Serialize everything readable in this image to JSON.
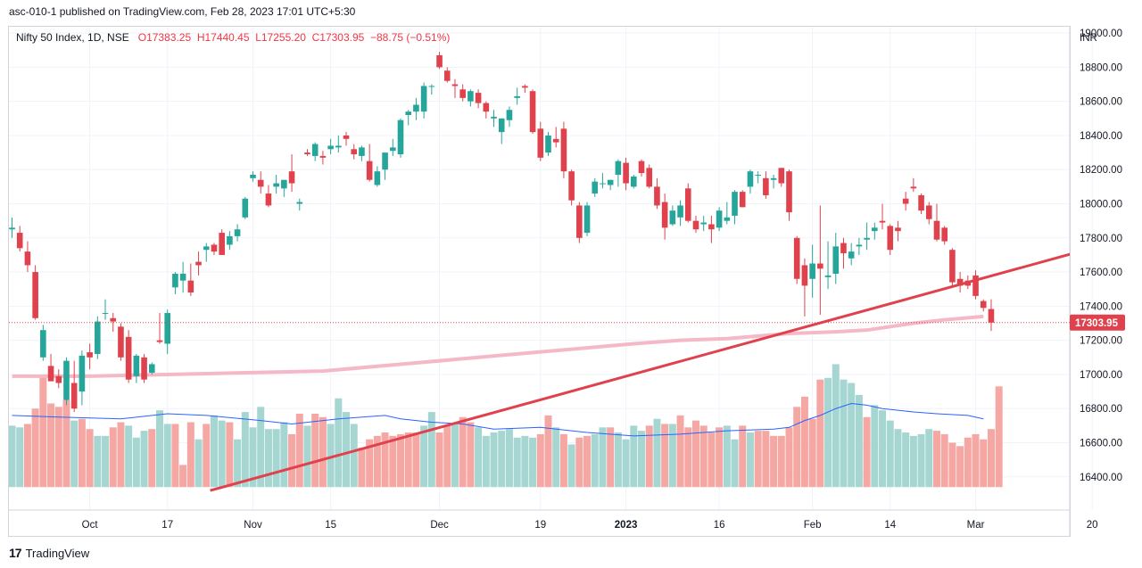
{
  "header": {
    "text": "asc-010-1 published on TradingView.com, Feb 28, 2023 17:01 UTC+5:30"
  },
  "legend": {
    "symbol": "Nifty 50 Index, 1D, NSE",
    "open": "O17383.25",
    "high": "H17440.45",
    "low": "L17255.20",
    "close": "C17303.95",
    "change": "−88.75 (−0.51%)"
  },
  "footer": {
    "logo_mark": "17",
    "brand": "TradingView"
  },
  "colors": {
    "up": "#26a69a",
    "down": "#e0424d",
    "trendline": "#e0424d",
    "ma": "#f5b8c6",
    "vol_ma": "#2962ff"
  },
  "chart_data": {
    "type": "candlestick",
    "title": "Nifty 50 Index, 1D, NSE",
    "currency_label": "INR",
    "last_price_label": "17303.95",
    "ylim": [
      16320,
      19080
    ],
    "y_ticks": [
      "19000.00",
      "18800.00",
      "18600.00",
      "18400.00",
      "18200.00",
      "18000.00",
      "17800.00",
      "17600.00",
      "17400.00",
      "17200.00",
      "17000.00",
      "16800.00",
      "16600.00",
      "16400.00"
    ],
    "x_tick_labels": [
      {
        "label": "Oct",
        "index": 10,
        "bold": false
      },
      {
        "label": "17",
        "index": 20,
        "bold": false
      },
      {
        "label": "Nov",
        "index": 31,
        "bold": false
      },
      {
        "label": "15",
        "index": 41,
        "bold": false
      },
      {
        "label": "Dec",
        "index": 55,
        "bold": false
      },
      {
        "label": "19",
        "index": 68,
        "bold": false
      },
      {
        "label": "2023",
        "index": 79,
        "bold": true
      },
      {
        "label": "16",
        "index": 91,
        "bold": false
      },
      {
        "label": "Feb",
        "index": 103,
        "bold": false
      },
      {
        "label": "14",
        "index": 113,
        "bold": false
      },
      {
        "label": "Mar",
        "index": 124,
        "bold": false
      },
      {
        "label": "20",
        "index": 139,
        "bold": false
      }
    ],
    "candles": [
      [
        17850,
        17920,
        17800,
        17860
      ],
      [
        17830,
        17870,
        17720,
        17740
      ],
      [
        17720,
        17780,
        17600,
        17640
      ],
      [
        17600,
        17640,
        17320,
        17330
      ],
      [
        17100,
        17290,
        17080,
        17260
      ],
      [
        17050,
        17120,
        16960,
        16960
      ],
      [
        16990,
        17030,
        16920,
        16950
      ],
      [
        16850,
        17100,
        16820,
        17080
      ],
      [
        16950,
        17080,
        16780,
        16800
      ],
      [
        16900,
        17140,
        16820,
        17110
      ],
      [
        17130,
        17180,
        17030,
        17100
      ],
      [
        17120,
        17340,
        17090,
        17310
      ],
      [
        17360,
        17440,
        17320,
        17360
      ],
      [
        17330,
        17360,
        17250,
        17310
      ],
      [
        17280,
        17300,
        17080,
        17100
      ],
      [
        17220,
        17260,
        16950,
        16970
      ],
      [
        16990,
        17120,
        16950,
        17110
      ],
      [
        17100,
        17120,
        16950,
        16970
      ],
      [
        17010,
        17070,
        17000,
        17060
      ],
      [
        17200,
        17360,
        17180,
        17190
      ],
      [
        17180,
        17380,
        17120,
        17360
      ],
      [
        17510,
        17600,
        17470,
        17590
      ],
      [
        17550,
        17660,
        17480,
        17590
      ],
      [
        17550,
        17650,
        17460,
        17480
      ],
      [
        17660,
        17720,
        17580,
        17640
      ],
      [
        17730,
        17770,
        17660,
        17750
      ],
      [
        17760,
        17770,
        17700,
        17720
      ],
      [
        17830,
        17850,
        17700,
        17700
      ],
      [
        17760,
        17840,
        17730,
        17810
      ],
      [
        17810,
        17880,
        17780,
        17850
      ],
      [
        17920,
        18040,
        17910,
        18030
      ],
      [
        18150,
        18190,
        18130,
        18170
      ],
      [
        18140,
        18190,
        18060,
        18100
      ],
      [
        18060,
        18110,
        17980,
        17990
      ],
      [
        18100,
        18170,
        18060,
        18120
      ],
      [
        18090,
        18140,
        18040,
        18140
      ],
      [
        18190,
        18290,
        18070,
        18120
      ],
      [
        18000,
        18030,
        17960,
        18010
      ],
      [
        18300,
        18320,
        18280,
        18290
      ],
      [
        18280,
        18360,
        18250,
        18350
      ],
      [
        18280,
        18310,
        18230,
        18270
      ],
      [
        18320,
        18380,
        18290,
        18340
      ],
      [
        18330,
        18400,
        18300,
        18340
      ],
      [
        18400,
        18420,
        18340,
        18380
      ],
      [
        18320,
        18350,
        18260,
        18290
      ],
      [
        18280,
        18340,
        18250,
        18330
      ],
      [
        18250,
        18350,
        18130,
        18140
      ],
      [
        18110,
        18220,
        18100,
        18190
      ],
      [
        18200,
        18300,
        18140,
        18300
      ],
      [
        18310,
        18380,
        18280,
        18330
      ],
      [
        18290,
        18500,
        18270,
        18490
      ],
      [
        18520,
        18550,
        18460,
        18540
      ],
      [
        18540,
        18620,
        18490,
        18580
      ],
      [
        18540,
        18710,
        18500,
        18690
      ],
      [
        18690,
        18700,
        18640,
        18690
      ],
      [
        18870,
        18890,
        18790,
        18800
      ],
      [
        18780,
        18800,
        18710,
        18720
      ],
      [
        18700,
        18730,
        18620,
        18690
      ],
      [
        18670,
        18700,
        18600,
        18620
      ],
      [
        18600,
        18670,
        18570,
        18660
      ],
      [
        18650,
        18670,
        18560,
        18590
      ],
      [
        18590,
        18600,
        18500,
        18540
      ],
      [
        18500,
        18550,
        18450,
        18510
      ],
      [
        18420,
        18500,
        18350,
        18500
      ],
      [
        18490,
        18570,
        18450,
        18550
      ],
      [
        18620,
        18680,
        18580,
        18630
      ],
      [
        18690,
        18700,
        18650,
        18680
      ],
      [
        18660,
        18670,
        18410,
        18420
      ],
      [
        18440,
        18480,
        18250,
        18270
      ],
      [
        18300,
        18420,
        18280,
        18400
      ],
      [
        18380,
        18450,
        18330,
        18360
      ],
      [
        18440,
        18480,
        18150,
        18190
      ],
      [
        18190,
        18200,
        17990,
        18020
      ],
      [
        17990,
        18010,
        17770,
        17800
      ],
      [
        17830,
        18010,
        17810,
        17990
      ],
      [
        18060,
        18150,
        18040,
        18130
      ],
      [
        18120,
        18180,
        18090,
        18120
      ],
      [
        18110,
        18140,
        18080,
        18140
      ],
      [
        18170,
        18260,
        18100,
        18250
      ],
      [
        18240,
        18270,
        18080,
        18120
      ],
      [
        18100,
        18170,
        18090,
        18160
      ],
      [
        18250,
        18260,
        18160,
        18180
      ],
      [
        18210,
        18230,
        18090,
        18100
      ],
      [
        18100,
        18150,
        17970,
        17990
      ],
      [
        18010,
        18060,
        17790,
        17860
      ],
      [
        17880,
        17990,
        17870,
        17960
      ],
      [
        17920,
        18020,
        17870,
        17990
      ],
      [
        18090,
        18120,
        17890,
        17900
      ],
      [
        17900,
        17930,
        17830,
        17850
      ],
      [
        17880,
        17930,
        17840,
        17890
      ],
      [
        17880,
        17930,
        17770,
        17850
      ],
      [
        17860,
        17980,
        17840,
        17960
      ],
      [
        17900,
        18010,
        17880,
        17920
      ],
      [
        17930,
        18080,
        17880,
        18070
      ],
      [
        18070,
        18080,
        17980,
        17980
      ],
      [
        18100,
        18200,
        18060,
        18190
      ],
      [
        18170,
        18190,
        18120,
        18170
      ],
      [
        18150,
        18190,
        18030,
        18050
      ],
      [
        18140,
        18170,
        18090,
        18150
      ],
      [
        18210,
        18210,
        18100,
        18120
      ],
      [
        18190,
        18200,
        17900,
        17950
      ],
      [
        17800,
        17810,
        17530,
        17560
      ],
      [
        17640,
        17680,
        17340,
        17520
      ],
      [
        17560,
        17760,
        17450,
        17650
      ],
      [
        17650,
        17990,
        17350,
        17620
      ],
      [
        17570,
        17780,
        17500,
        17580
      ],
      [
        17590,
        17830,
        17530,
        17750
      ],
      [
        17770,
        17800,
        17620,
        17710
      ],
      [
        17680,
        17770,
        17640,
        17720
      ],
      [
        17750,
        17800,
        17700,
        17760
      ],
      [
        17790,
        17890,
        17730,
        17800
      ],
      [
        17840,
        17890,
        17790,
        17860
      ],
      [
        17900,
        18000,
        17850,
        17890
      ],
      [
        17870,
        17880,
        17700,
        17730
      ],
      [
        17860,
        17900,
        17780,
        17840
      ],
      [
        18030,
        18070,
        17960,
        18000
      ],
      [
        18100,
        18150,
        18070,
        18090
      ],
      [
        18050,
        18060,
        17940,
        17960
      ],
      [
        17990,
        18010,
        17880,
        17910
      ],
      [
        17900,
        18000,
        17780,
        17790
      ],
      [
        17860,
        17870,
        17760,
        17780
      ],
      [
        17730,
        17740,
        17520,
        17540
      ],
      [
        17560,
        17600,
        17480,
        17520
      ],
      [
        17550,
        17580,
        17500,
        17520
      ],
      [
        17580,
        17610,
        17440,
        17460
      ],
      [
        17430,
        17440,
        17370,
        17390
      ],
      [
        17383.25,
        17440.45,
        17255.2,
        17303.95
      ]
    ],
    "volumes": [
      [
        16700,
        "up"
      ],
      [
        16690,
        "up"
      ],
      [
        16710,
        "down"
      ],
      [
        16800,
        "down"
      ],
      [
        17000,
        "down"
      ],
      [
        16830,
        "down"
      ],
      [
        16810,
        "down"
      ],
      [
        16850,
        "down"
      ],
      [
        16730,
        "up"
      ],
      [
        16740,
        "down"
      ],
      [
        16680,
        "down"
      ],
      [
        16640,
        "up"
      ],
      [
        16640,
        "up"
      ],
      [
        16690,
        "down"
      ],
      [
        16720,
        "down"
      ],
      [
        16700,
        "up"
      ],
      [
        16630,
        "up"
      ],
      [
        16670,
        "up"
      ],
      [
        16680,
        "down"
      ],
      [
        16790,
        "up"
      ],
      [
        16710,
        "up"
      ],
      [
        16710,
        "down"
      ],
      [
        16470,
        "down"
      ],
      [
        16720,
        "down"
      ],
      [
        16620,
        "up"
      ],
      [
        16710,
        "down"
      ],
      [
        16760,
        "up"
      ],
      [
        16730,
        "up"
      ],
      [
        16720,
        "down"
      ],
      [
        16620,
        "up"
      ],
      [
        16780,
        "up"
      ],
      [
        16690,
        "up"
      ],
      [
        16810,
        "up"
      ],
      [
        16680,
        "up"
      ],
      [
        16680,
        "up"
      ],
      [
        16720,
        "up"
      ],
      [
        16650,
        "down"
      ],
      [
        16770,
        "down"
      ],
      [
        16700,
        "up"
      ],
      [
        16770,
        "down"
      ],
      [
        16750,
        "down"
      ],
      [
        16710,
        "up"
      ],
      [
        16860,
        "up"
      ],
      [
        16780,
        "up"
      ],
      [
        16710,
        "up"
      ],
      [
        16570,
        "down"
      ],
      [
        16620,
        "down"
      ],
      [
        16640,
        "down"
      ],
      [
        16660,
        "down"
      ],
      [
        16640,
        "down"
      ],
      [
        16650,
        "down"
      ],
      [
        16660,
        "down"
      ],
      [
        16660,
        "down"
      ],
      [
        16700,
        "up"
      ],
      [
        16780,
        "up"
      ],
      [
        16660,
        "down"
      ],
      [
        16700,
        "down"
      ],
      [
        16710,
        "up"
      ],
      [
        16750,
        "down"
      ],
      [
        16720,
        "down"
      ],
      [
        16690,
        "up"
      ],
      [
        16640,
        "up"
      ],
      [
        16660,
        "up"
      ],
      [
        16670,
        "up"
      ],
      [
        16680,
        "up"
      ],
      [
        16630,
        "up"
      ],
      [
        16640,
        "up"
      ],
      [
        16630,
        "up"
      ],
      [
        16650,
        "down"
      ],
      [
        16760,
        "down"
      ],
      [
        16690,
        "up"
      ],
      [
        16650,
        "down"
      ],
      [
        16590,
        "up"
      ],
      [
        16630,
        "down"
      ],
      [
        16640,
        "down"
      ],
      [
        16650,
        "up"
      ],
      [
        16690,
        "up"
      ],
      [
        16690,
        "down"
      ],
      [
        16660,
        "up"
      ],
      [
        16620,
        "up"
      ],
      [
        16700,
        "up"
      ],
      [
        16670,
        "up"
      ],
      [
        16700,
        "down"
      ],
      [
        16740,
        "up"
      ],
      [
        16710,
        "down"
      ],
      [
        16710,
        "up"
      ],
      [
        16760,
        "down"
      ],
      [
        16690,
        "down"
      ],
      [
        16730,
        "down"
      ],
      [
        16700,
        "down"
      ],
      [
        16660,
        "down"
      ],
      [
        16690,
        "down"
      ],
      [
        16700,
        "up"
      ],
      [
        16620,
        "up"
      ],
      [
        16700,
        "down"
      ],
      [
        16660,
        "up"
      ],
      [
        16670,
        "down"
      ],
      [
        16670,
        "down"
      ],
      [
        16640,
        "down"
      ],
      [
        16640,
        "down"
      ],
      [
        16690,
        "down"
      ],
      [
        16810,
        "down"
      ],
      [
        16870,
        "down"
      ],
      [
        16740,
        "down"
      ],
      [
        16970,
        "down"
      ],
      [
        16980,
        "up"
      ],
      [
        17060,
        "up"
      ],
      [
        16970,
        "up"
      ],
      [
        16950,
        "up"
      ],
      [
        16880,
        "up"
      ],
      [
        16750,
        "down"
      ],
      [
        16820,
        "up"
      ],
      [
        16790,
        "up"
      ],
      [
        16730,
        "up"
      ],
      [
        16680,
        "up"
      ],
      [
        16660,
        "up"
      ],
      [
        16640,
        "up"
      ],
      [
        16650,
        "up"
      ],
      [
        16680,
        "up"
      ],
      [
        16670,
        "down"
      ],
      [
        16650,
        "down"
      ],
      [
        16600,
        "down"
      ],
      [
        16580,
        "down"
      ],
      [
        16630,
        "down"
      ],
      [
        16650,
        "down"
      ],
      [
        16620,
        "down"
      ],
      [
        16680,
        "down"
      ],
      [
        16930,
        "down"
      ]
    ],
    "volume_ma": [
      [
        0,
        16760
      ],
      [
        6,
        16750
      ],
      [
        14,
        16740
      ],
      [
        20,
        16770
      ],
      [
        25,
        16760
      ],
      [
        32,
        16730
      ],
      [
        36,
        16710
      ],
      [
        42,
        16740
      ],
      [
        48,
        16760
      ],
      [
        50,
        16740
      ],
      [
        54,
        16720
      ],
      [
        58,
        16710
      ],
      [
        62,
        16680
      ],
      [
        68,
        16690
      ],
      [
        74,
        16660
      ],
      [
        80,
        16640
      ],
      [
        86,
        16650
      ],
      [
        92,
        16670
      ],
      [
        98,
        16680
      ],
      [
        100,
        16690
      ],
      [
        102,
        16730
      ],
      [
        104,
        16760
      ],
      [
        106,
        16800
      ],
      [
        108,
        16830
      ],
      [
        110,
        16820
      ],
      [
        112,
        16800
      ],
      [
        114,
        16790
      ],
      [
        116,
        16780
      ],
      [
        119,
        16770
      ],
      [
        123,
        16760
      ],
      [
        125,
        16740
      ]
    ],
    "moving_average": [
      [
        0,
        16990
      ],
      [
        10,
        16990
      ],
      [
        20,
        17000
      ],
      [
        30,
        17010
      ],
      [
        40,
        17020
      ],
      [
        50,
        17060
      ],
      [
        60,
        17100
      ],
      [
        70,
        17140
      ],
      [
        80,
        17180
      ],
      [
        86,
        17200
      ],
      [
        92,
        17210
      ],
      [
        100,
        17240
      ],
      [
        106,
        17250
      ],
      [
        110,
        17260
      ],
      [
        116,
        17300
      ],
      [
        120,
        17320
      ],
      [
        125,
        17340
      ]
    ],
    "trendline": {
      "points": [
        [
          25.5,
          16320
        ],
        [
          143,
          17790
        ]
      ]
    }
  }
}
